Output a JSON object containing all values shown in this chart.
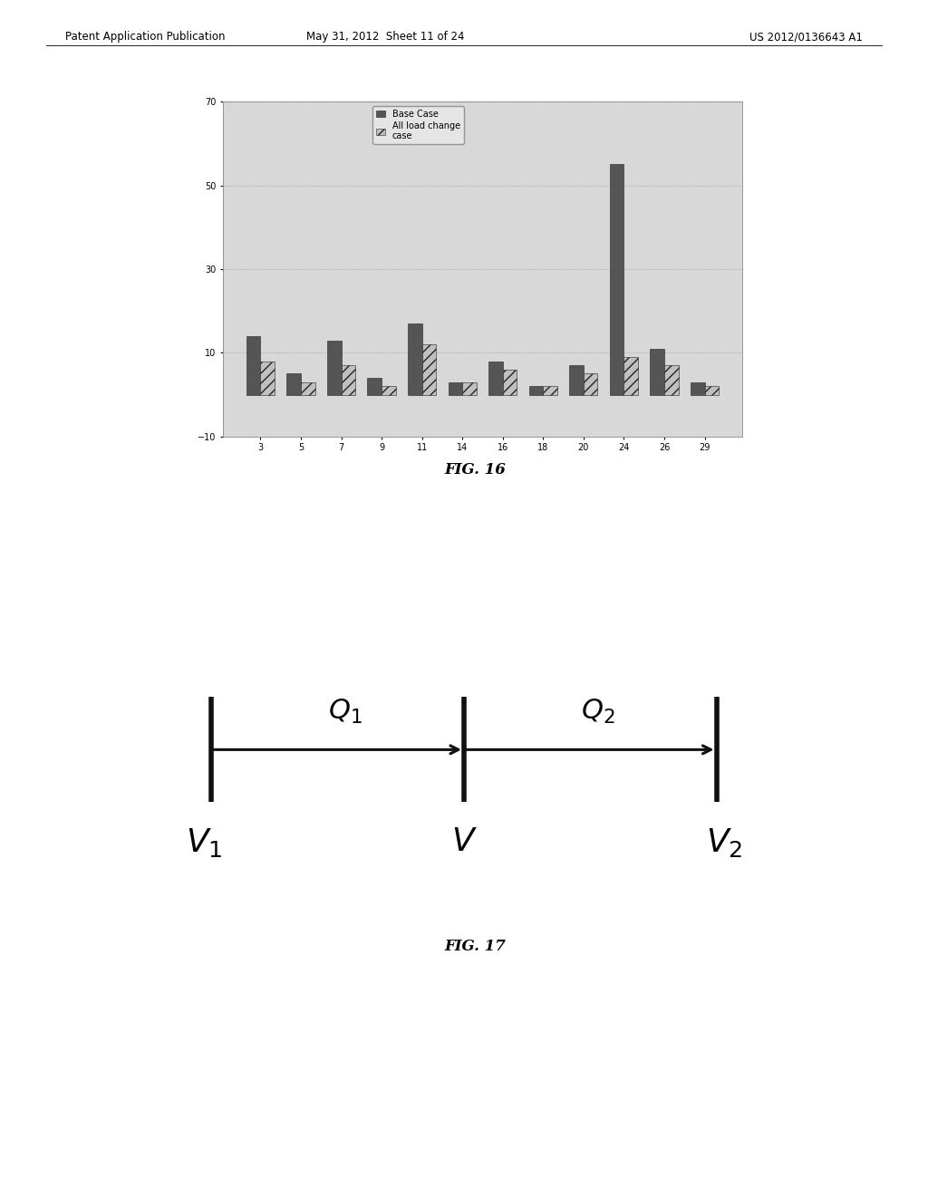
{
  "header_left": "Patent Application Publication",
  "header_mid": "May 31, 2012  Sheet 11 of 24",
  "header_right": "US 2012/0136643 A1",
  "categories": [
    3,
    5,
    7,
    9,
    11,
    14,
    16,
    18,
    20,
    24,
    26,
    29
  ],
  "base_case": [
    14,
    5,
    13,
    4,
    17,
    3,
    8,
    2,
    7,
    55,
    11,
    3
  ],
  "all_load_change": [
    8,
    3,
    7,
    2,
    12,
    3,
    6,
    2,
    5,
    9,
    7,
    2
  ],
  "ylim": [
    -10,
    70
  ],
  "yticks": [
    -10,
    10,
    30,
    50,
    70
  ],
  "bar_color_base": "#555555",
  "bar_color_load": "#c0c0c0",
  "legend_base": "Base Case",
  "legend_load": "All load change\ncase",
  "bg_color": "#d8d8d8",
  "grid_color": "#aaaaaa",
  "bar_width": 0.35,
  "fig16_label": "FIG. 16",
  "fig17_label": "FIG. 17"
}
